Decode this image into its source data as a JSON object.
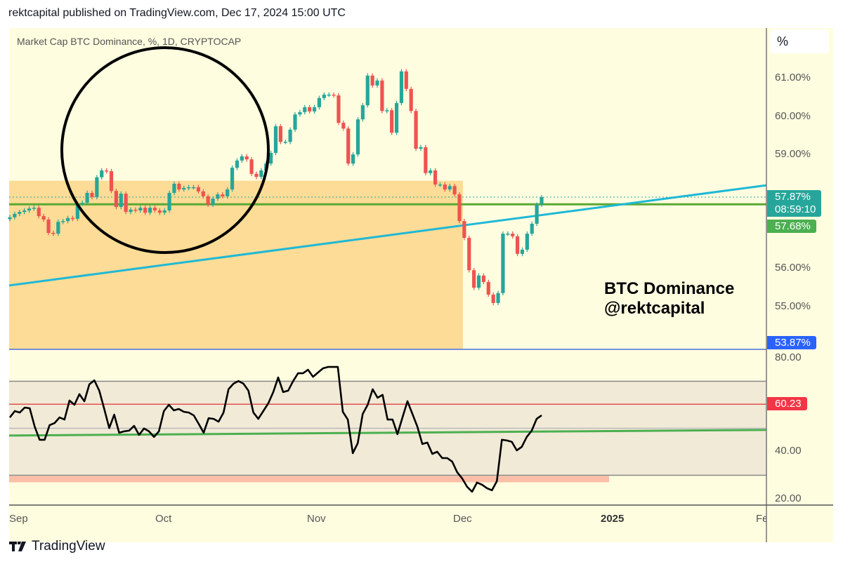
{
  "header": {
    "published": "rektcapital published on TradingView.com, Dec 17, 2024 15:00 UTC"
  },
  "legend": {
    "symbol_line": "Market Cap BTC Dominance, %, 1D, CRYPTOCAP"
  },
  "scale_button": "%",
  "annotation": {
    "line1": "BTC Dominance",
    "line2": "@rektcapital"
  },
  "footer": {
    "brand": "TradingView"
  },
  "colors": {
    "up": "#26a69a",
    "down": "#ef5350",
    "support_line": "#5aa832",
    "trendline": "#1fb8d6",
    "zone": "#fcdc96",
    "rsi_band": "#f0ead6",
    "rsi_line": "#000000",
    "rsi_low_zone": "#fbbfa8",
    "last_price": "#26a69a",
    "level_tag": "#4caf50",
    "low_tag": "#2962ff",
    "rsi_tag": "#f23645"
  },
  "chart_data": [
    {
      "type": "candlestick",
      "title": "Market Cap BTC Dominance, %, 1D, CRYPTOCAP",
      "ylim": [
        53.87,
        61.5
      ],
      "y_ticks": [
        "61.00%",
        "60.00%",
        "59.00%",
        "56.00%",
        "55.00%"
      ],
      "x_ticks": [
        "Sep",
        "Oct",
        "Nov",
        "Dec",
        "2025",
        "Fe"
      ],
      "period": "1D",
      "last_date": "Dec 17, 2024",
      "closes": [
        57.34,
        57.43,
        57.48,
        57.52,
        57.57,
        57.59,
        57.37,
        57.28,
        56.93,
        56.91,
        57.22,
        57.24,
        57.32,
        57.3,
        57.7,
        57.72,
        57.98,
        57.87,
        58.39,
        58.57,
        58.55,
        58.03,
        57.61,
        57.96,
        57.48,
        57.54,
        57.52,
        57.59,
        57.46,
        57.59,
        57.52,
        57.46,
        57.52,
        57.98,
        58.22,
        58.07,
        58.11,
        58.13,
        58.13,
        58.02,
        57.89,
        57.67,
        57.83,
        57.94,
        57.89,
        58.07,
        58.64,
        58.83,
        58.94,
        58.86,
        58.48,
        58.4,
        58.57,
        58.75,
        59.03,
        59.73,
        59.32,
        59.32,
        59.64,
        60.04,
        60.1,
        60.23,
        60.12,
        60.23,
        60.47,
        60.56,
        60.56,
        60.54,
        59.82,
        59.67,
        58.75,
        58.99,
        59.91,
        60.28,
        61.06,
        60.8,
        60.93,
        60.13,
        60.15,
        59.56,
        60.34,
        61.17,
        60.71,
        60.13,
        59.14,
        59.18,
        58.5,
        58.57,
        58.2,
        58.2,
        58.07,
        58.16,
        57.94,
        57.24,
        56.8,
        55.95,
        55.49,
        55.81,
        55.64,
        55.31,
        55.09,
        55.35,
        56.91,
        56.91,
        56.84,
        56.38,
        56.49,
        56.91,
        57.17,
        57.67,
        57.87
      ],
      "last_price": {
        "value": "57.87%",
        "countdown": "08:59:10"
      },
      "horizontal_level": {
        "value": 57.68,
        "label": "57.68%"
      },
      "low_marker": {
        "value": 53.87,
        "label": "53.87%"
      },
      "zone": {
        "from": 53.87,
        "to": 58.3,
        "until": "Nov 30"
      },
      "trendline": {
        "start": 55.55,
        "end": 58.18
      }
    },
    {
      "type": "line",
      "ylim": [
        20,
        80
      ],
      "y_ticks": [
        "80.00",
        "40.00",
        "20.00"
      ],
      "bands": {
        "upper": 70,
        "middle": 50,
        "lower": 30
      },
      "red_level": {
        "value": 60.23,
        "label": "60.23"
      },
      "low_zone": [
        27,
        29.7
      ],
      "trendline": {
        "start": 46.9,
        "end": 49.3
      },
      "values": [
        54.6,
        57.3,
        56.7,
        58.8,
        58.5,
        50.7,
        45.1,
        45.1,
        51.3,
        52.2,
        54.6,
        53.7,
        61.8,
        60.0,
        64.5,
        61.5,
        68.7,
        70.4,
        66.0,
        58.2,
        50.1,
        55.8,
        48.1,
        48.7,
        49.0,
        51.0,
        47.2,
        49.9,
        48.7,
        46.3,
        48.7,
        57.3,
        60.0,
        57.6,
        58.2,
        57.0,
        56.7,
        55.5,
        51.9,
        48.1,
        54.3,
        54.0,
        52.8,
        56.7,
        66.6,
        69.0,
        70.1,
        69.0,
        66.0,
        56.7,
        54.0,
        57.3,
        60.6,
        65.4,
        71.6,
        65.4,
        66.0,
        70.1,
        73.4,
        73.4,
        74.9,
        71.9,
        73.7,
        75.5,
        76.1,
        76.1,
        76.1,
        57.0,
        53.7,
        39.4,
        43.6,
        56.1,
        60.0,
        66.6,
        63.0,
        64.2,
        53.7,
        53.7,
        47.5,
        54.6,
        61.5,
        56.1,
        50.7,
        43.3,
        43.9,
        39.1,
        40.0,
        37.3,
        37.3,
        35.8,
        31.3,
        28.7,
        25.1,
        23.0,
        26.9,
        26.0,
        24.5,
        23.6,
        27.5,
        45.1,
        44.8,
        44.2,
        40.6,
        42.1,
        46.3,
        49.0,
        54.0,
        55.5
      ]
    }
  ]
}
